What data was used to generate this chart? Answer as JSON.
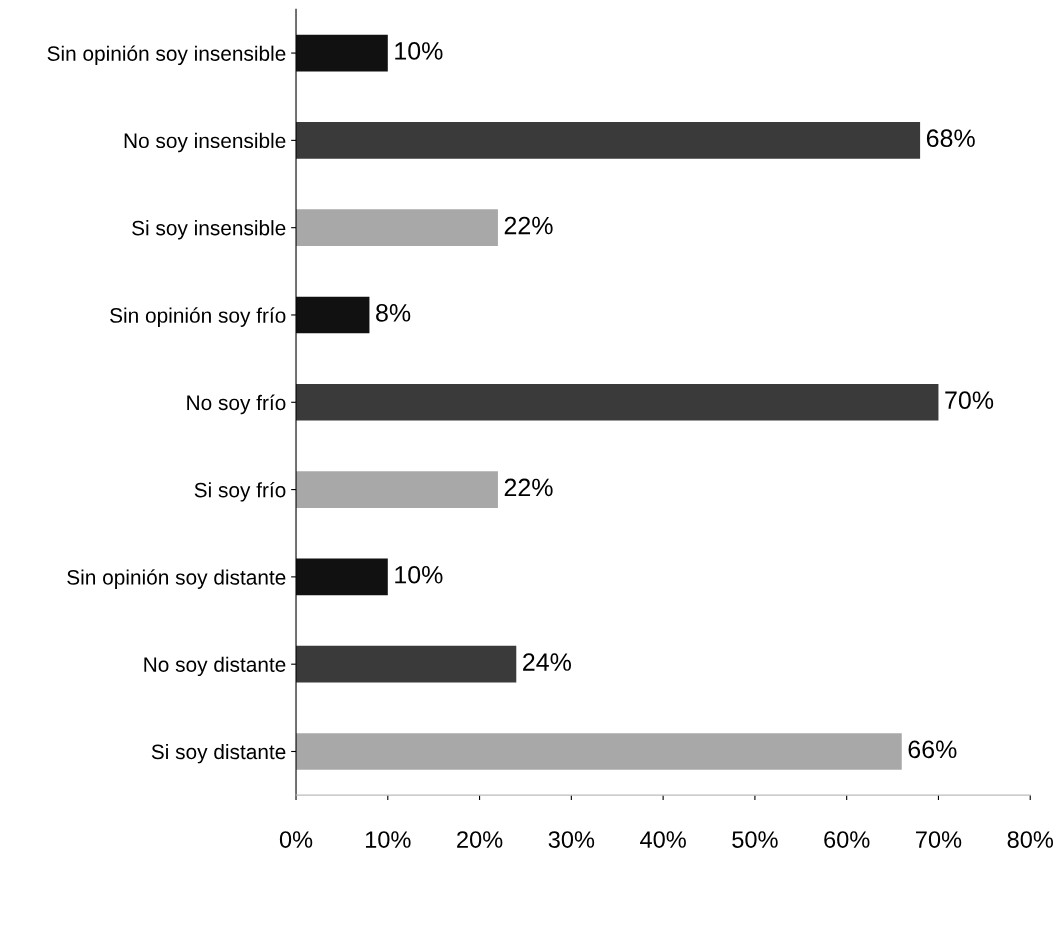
{
  "chart_data": {
    "type": "bar",
    "orientation": "horizontal",
    "categories": [
      "Sin opinión soy insensible",
      "No soy insensible",
      "Si soy insensible",
      "Sin opinión soy frío",
      "No soy frío",
      "Si soy frío",
      "Sin opinión soy distante",
      "No soy distante",
      "Si soy distante"
    ],
    "values": [
      10,
      68,
      22,
      8,
      70,
      22,
      10,
      24,
      66
    ],
    "value_labels": [
      "10%",
      "68%",
      "22%",
      "8%",
      "70%",
      "22%",
      "10%",
      "24%",
      "66%"
    ],
    "colors": [
      "#111111",
      "#3a3a3a",
      "#a8a8a8",
      "#111111",
      "#3a3a3a",
      "#a8a8a8",
      "#111111",
      "#3a3a3a",
      "#a8a8a8"
    ],
    "xlim": [
      0,
      80
    ],
    "xticks": [
      {
        "value": 0,
        "label": "0%"
      },
      {
        "value": 10,
        "label": "10%"
      },
      {
        "value": 20,
        "label": "20%"
      },
      {
        "value": 30,
        "label": "30%"
      },
      {
        "value": 40,
        "label": "40%"
      },
      {
        "value": 50,
        "label": "50%"
      },
      {
        "value": 60,
        "label": "60%"
      },
      {
        "value": 70,
        "label": "70%"
      },
      {
        "value": 80,
        "label": "80%"
      }
    ],
    "grid": false,
    "legend": false
  }
}
